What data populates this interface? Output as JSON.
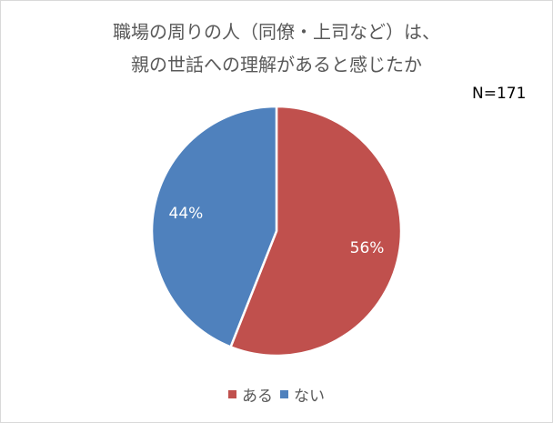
{
  "chart_data": {
    "type": "pie",
    "title": "職場の周りの人（同僚・上司など）は、",
    "subtitle": "親の世話への理解があると感じたか",
    "note": "N=171",
    "categories": [
      "ある",
      "ない"
    ],
    "values": [
      56,
      44
    ],
    "data_labels": [
      "56%",
      "44%"
    ],
    "colors": [
      "#c0504d",
      "#4f81bd"
    ],
    "start": "12 o'clock, clockwise",
    "legend": "bottom"
  }
}
